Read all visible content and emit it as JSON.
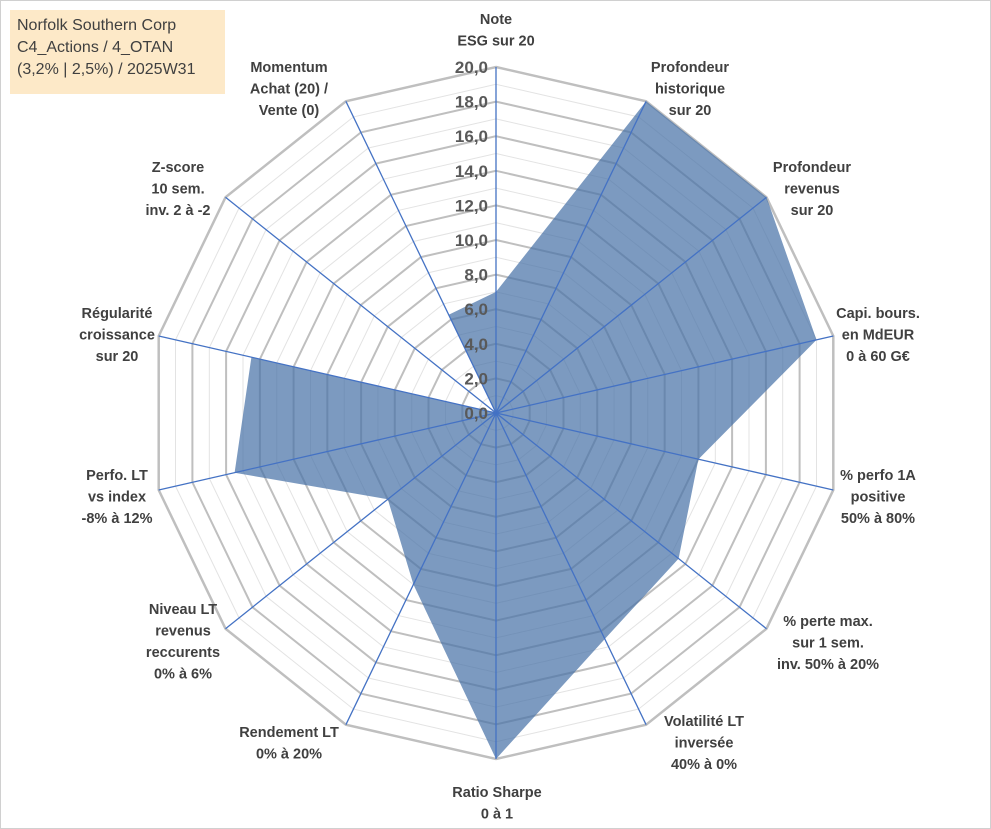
{
  "info_box": {
    "line1": "Norfolk Southern Corp",
    "line2": "C4_Actions / 4_OTAN",
    "line3": "(3,2% | 2,5%) / 2025W31"
  },
  "chart_data": {
    "type": "radar",
    "title": "",
    "rlim": [
      0,
      20
    ],
    "tick_labels": [
      "0,0",
      "2,0",
      "4,0",
      "6,0",
      "8,0",
      "10,0",
      "12,0",
      "14,0",
      "16,0",
      "18,0",
      "20,0"
    ],
    "grid": true,
    "legend": "none",
    "categories": [
      [
        "Note",
        "ESG sur 20"
      ],
      [
        "Profondeur",
        "historique",
        "sur 20"
      ],
      [
        "Profondeur",
        "revenus",
        "sur 20"
      ],
      [
        "Capi. bours.",
        "en MdEUR",
        "0 à 60 G€"
      ],
      [
        "% perfo 1A",
        "positive",
        "50% à 80%"
      ],
      [
        "% perte max.",
        "sur 1 sem.",
        "inv. 50% à 20%"
      ],
      [
        "Volatilité LT",
        "inversée",
        "40% à 0%"
      ],
      [
        "Ratio Sharpe",
        "0 à 1"
      ],
      [
        "Rendement LT",
        "0% à 20%"
      ],
      [
        "Niveau LT",
        "revenus",
        "reccurents",
        "0% à 6%"
      ],
      [
        "Perfo. LT",
        "vs index",
        "-8% à 12%"
      ],
      [
        "Régularité",
        "croissance",
        "sur 20"
      ],
      [
        "Z-score",
        "10 sem.",
        "inv. 2 à -2"
      ],
      [
        "Momentum",
        "Achat (20) /",
        "Vente (0)"
      ]
    ],
    "series": [
      {
        "values": [
          7.0,
          20.0,
          20.0,
          19.0,
          12.0,
          13.5,
          14.5,
          20.0,
          11.0,
          8.0,
          15.5,
          14.5,
          0.0,
          6.3
        ]
      }
    ],
    "colors": {
      "fill": "#4a73a8",
      "fill_opacity": 0.72,
      "stroke": "#4472c4",
      "axis": "#4472c4",
      "grid_major": "#bfbfbf",
      "grid_minor": "#e3e3e3"
    }
  }
}
